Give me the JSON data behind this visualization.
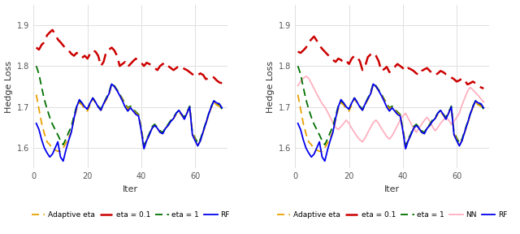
{
  "ylabel": "Hedge Loss",
  "xlabel": "Iter",
  "ylim": [
    1.55,
    1.95
  ],
  "yticks": [
    1.6,
    1.7,
    1.8,
    1.9
  ],
  "xlim": [
    0,
    72
  ],
  "xticks": [
    0,
    20,
    40,
    60
  ],
  "colors": {
    "adaptive_eta": "#E8A000",
    "eta_01": "#CC0000",
    "eta_1": "#007000",
    "rf": "#0000EE",
    "nn": "#FFB0C0"
  },
  "legend1": [
    "Adaptive eta",
    "eta = 0.1",
    "eta = 1",
    "RF"
  ],
  "legend2": [
    "Adaptive eta",
    "eta = 0.1",
    "eta = 1",
    "NN",
    "RF"
  ],
  "bg_color": "#ffffff",
  "grid_color": "#e0e0e0"
}
